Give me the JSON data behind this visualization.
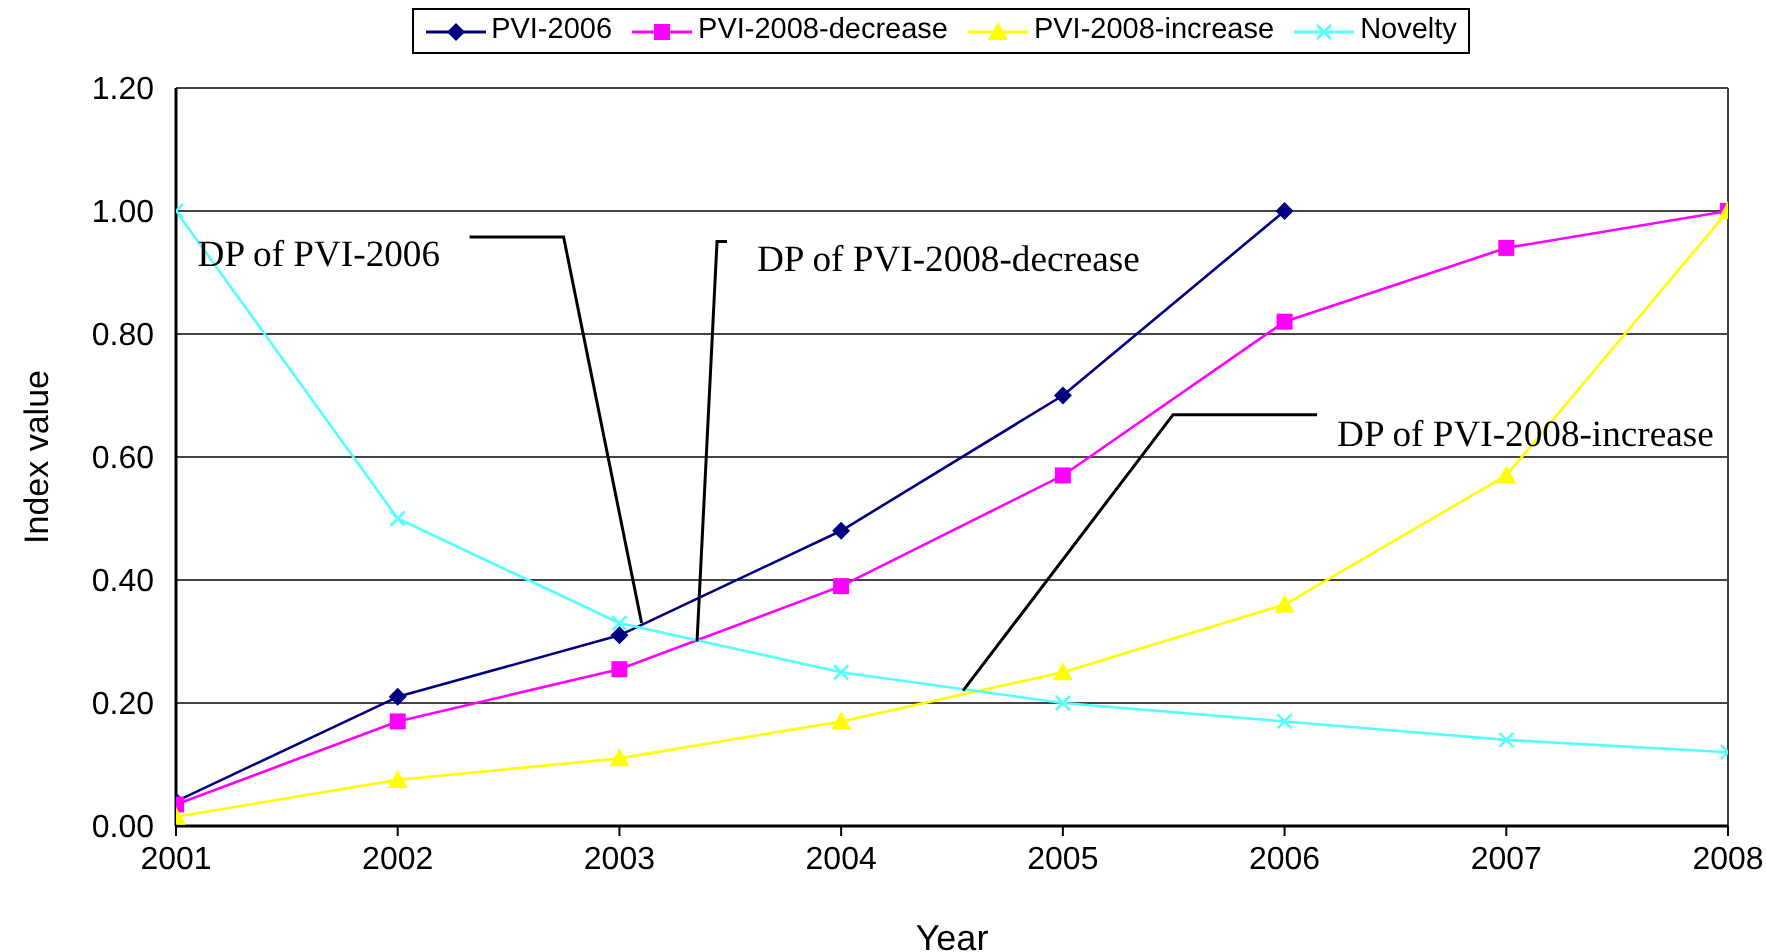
{
  "chart_data": {
    "type": "line",
    "xlabel": "Year",
    "ylabel": "Index value",
    "x": [
      2001,
      2002,
      2003,
      2004,
      2005,
      2006,
      2007,
      2008
    ],
    "xlim": [
      2001,
      2008
    ],
    "xticks": [
      2001,
      2002,
      2003,
      2004,
      2005,
      2006,
      2007,
      2008
    ],
    "ylim": [
      0,
      1.2
    ],
    "yticks": [
      {
        "value": 0,
        "label": "0.00"
      },
      {
        "value": 0.2,
        "label": "0.20"
      },
      {
        "value": 0.4,
        "label": "0.40"
      },
      {
        "value": 0.6,
        "label": "0.60"
      },
      {
        "value": 0.8,
        "label": "0.80"
      },
      {
        "value": 1,
        "label": "1.00"
      },
      {
        "value": 1.2,
        "label": "1.20"
      }
    ],
    "grid": "y",
    "legend": "top",
    "series": [
      {
        "name": "PVI-2006",
        "color": "#000080",
        "marker": "diamond",
        "values": [
          0.04,
          0.21,
          0.31,
          0.48,
          0.7,
          1.0,
          null,
          null
        ]
      },
      {
        "name": "PVI-2008-decrease",
        "color": "#ff00ff",
        "marker": "square",
        "values": [
          0.035,
          0.17,
          0.255,
          0.39,
          0.57,
          0.82,
          0.94,
          1.0
        ]
      },
      {
        "name": "PVI-2008-increase",
        "color": "#ffff00",
        "marker": "triangle",
        "values": [
          0.015,
          0.075,
          0.11,
          0.17,
          0.25,
          0.36,
          0.57,
          1.0
        ]
      },
      {
        "name": "Novelty",
        "color": "#55ffff",
        "marker": "cross",
        "values": [
          1.0,
          0.5,
          0.33,
          0.25,
          0.2,
          0.17,
          0.14,
          0.12
        ]
      }
    ],
    "annotations": [
      {
        "text": "DP of PVI-2006",
        "x": 2003.1,
        "y": 0.33
      },
      {
        "text": "DP of PVI-2008-decrease",
        "x": 2003.35,
        "y": 0.3
      },
      {
        "text": "DP of PVI-2008-increase",
        "x": 2004.55,
        "y": 0.22
      }
    ]
  }
}
